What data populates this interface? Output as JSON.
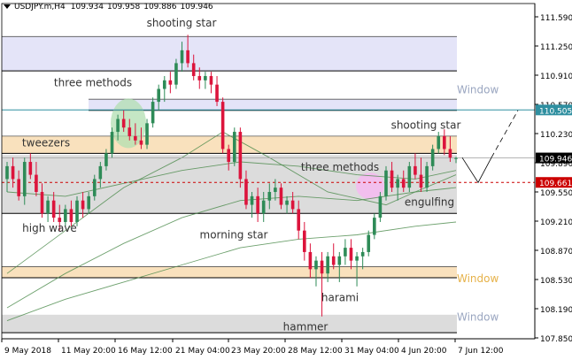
{
  "header": {
    "symbol": "USDJPY.m,H4",
    "open": "109.934",
    "high": "109.958",
    "low": "109.886",
    "close": "109.946"
  },
  "chart_data": {
    "type": "candlestick",
    "ylim": [
      107.85,
      111.75
    ],
    "price_ticks": [
      "111.590",
      "111.250",
      "110.910",
      "110.570",
      "110.230",
      "109.890",
      "109.550",
      "109.210",
      "108.870",
      "108.530",
      "108.190",
      "107.850"
    ],
    "price_tick_values": [
      111.59,
      111.25,
      110.91,
      110.57,
      110.23,
      109.89,
      109.55,
      109.21,
      108.87,
      108.53,
      108.19,
      107.85
    ],
    "time_labels": [
      "9 May 2018",
      "11 May 20:00",
      "16 May 12:00",
      "21 May 04:00",
      "23 May 20:00",
      "28 May 12:00",
      "31 May 04:00",
      "4 Jun 20:00",
      "7 Jun 12:00"
    ],
    "current_price": "109.946",
    "current_price_value": 109.946,
    "level_price": "110.505",
    "level_price_value": 110.505,
    "dashed_level": "109.661",
    "dashed_level_value": 109.661,
    "colors": {
      "bull": "#2e8b57",
      "bear": "#dc143c",
      "window_zone": "#e4e4f8",
      "orange_zone": "#f9e1bd",
      "gray_zone": "#dcdcdc",
      "level_line": "#2f8fa0",
      "dashed_line": "#cc0000",
      "ma": "#4a8a4a",
      "highlight_green": "#b2dfb2",
      "highlight_pink": "#f7b8f2"
    },
    "zones": [
      {
        "type": "window",
        "from": 110.96,
        "to": 111.36
      },
      {
        "type": "window",
        "from": 110.5,
        "to": 110.63
      },
      {
        "type": "orange",
        "from": 110.0,
        "to": 110.2
      },
      {
        "type": "gray",
        "from": 109.3,
        "to": 109.98
      },
      {
        "type": "orange",
        "from": 108.55,
        "to": 108.68
      },
      {
        "type": "gray",
        "from": 107.91,
        "to": 108.12
      }
    ],
    "annotations": [
      "shooting star",
      "three methods",
      "tweezers",
      "high wave",
      "morning star",
      "three methods",
      "shooting star",
      "engulfing",
      "hammer",
      "harami",
      "Window",
      "Window",
      "Window"
    ],
    "candles": [
      [
        109.7,
        109.9,
        109.55,
        109.85
      ],
      [
        109.85,
        109.95,
        109.6,
        109.7
      ],
      [
        109.7,
        109.8,
        109.45,
        109.5
      ],
      [
        109.5,
        109.95,
        109.4,
        109.9
      ],
      [
        109.9,
        110.0,
        109.7,
        109.75
      ],
      [
        109.75,
        109.9,
        109.5,
        109.55
      ],
      [
        109.55,
        109.65,
        109.25,
        109.3
      ],
      [
        109.3,
        109.5,
        109.2,
        109.45
      ],
      [
        109.45,
        109.55,
        109.2,
        109.25
      ],
      [
        109.25,
        109.4,
        109.1,
        109.2
      ],
      [
        109.2,
        109.4,
        109.15,
        109.35
      ],
      [
        109.35,
        109.45,
        109.15,
        109.2
      ],
      [
        109.2,
        109.5,
        109.15,
        109.45
      ],
      [
        109.45,
        109.55,
        109.25,
        109.35
      ],
      [
        109.35,
        109.55,
        109.3,
        109.5
      ],
      [
        109.5,
        109.75,
        109.45,
        109.7
      ],
      [
        109.7,
        109.9,
        109.6,
        109.85
      ],
      [
        109.85,
        110.05,
        109.8,
        110.0
      ],
      [
        110.0,
        110.3,
        109.95,
        110.25
      ],
      [
        110.25,
        110.45,
        110.15,
        110.4
      ],
      [
        110.4,
        110.5,
        110.25,
        110.3
      ],
      [
        110.3,
        110.4,
        110.15,
        110.2
      ],
      [
        110.2,
        110.35,
        110.1,
        110.15
      ],
      [
        110.15,
        110.3,
        110.05,
        110.1
      ],
      [
        110.1,
        110.4,
        110.05,
        110.35
      ],
      [
        110.35,
        110.65,
        110.3,
        110.6
      ],
      [
        110.6,
        110.8,
        110.5,
        110.75
      ],
      [
        110.75,
        110.9,
        110.6,
        110.85
      ],
      [
        110.85,
        110.95,
        110.7,
        110.8
      ],
      [
        110.8,
        111.1,
        110.75,
        111.05
      ],
      [
        111.05,
        111.3,
        110.95,
        111.2
      ],
      [
        111.2,
        111.38,
        111.0,
        111.05
      ],
      [
        111.05,
        111.15,
        110.85,
        110.9
      ],
      [
        110.9,
        111.0,
        110.75,
        110.85
      ],
      [
        110.85,
        110.95,
        110.75,
        110.9
      ],
      [
        110.9,
        110.95,
        110.7,
        110.8
      ],
      [
        110.8,
        110.9,
        110.55,
        110.6
      ],
      [
        110.6,
        110.65,
        110.0,
        110.05
      ],
      [
        110.05,
        110.1,
        109.8,
        109.9
      ],
      [
        109.9,
        110.3,
        109.85,
        110.25
      ],
      [
        110.25,
        110.3,
        109.6,
        109.7
      ],
      [
        109.7,
        109.8,
        109.35,
        109.4
      ],
      [
        109.4,
        109.55,
        109.25,
        109.5
      ],
      [
        109.5,
        109.6,
        109.2,
        109.3
      ],
      [
        109.3,
        109.55,
        109.2,
        109.45
      ],
      [
        109.45,
        109.65,
        109.35,
        109.55
      ],
      [
        109.55,
        109.7,
        109.45,
        109.6
      ],
      [
        109.6,
        109.65,
        109.35,
        109.4
      ],
      [
        109.4,
        109.5,
        109.3,
        109.45
      ],
      [
        109.45,
        109.55,
        109.3,
        109.35
      ],
      [
        109.35,
        109.45,
        109.0,
        109.1
      ],
      [
        109.1,
        109.2,
        108.75,
        108.85
      ],
      [
        108.85,
        108.95,
        108.55,
        108.65
      ],
      [
        108.65,
        108.8,
        108.45,
        108.75
      ],
      [
        108.75,
        108.85,
        108.1,
        108.6
      ],
      [
        108.6,
        108.85,
        108.5,
        108.8
      ],
      [
        108.8,
        108.95,
        108.65,
        108.7
      ],
      [
        108.7,
        108.85,
        108.5,
        108.8
      ],
      [
        108.8,
        109.0,
        108.7,
        108.9
      ],
      [
        108.9,
        109.0,
        108.65,
        108.75
      ],
      [
        108.75,
        108.85,
        108.45,
        108.8
      ],
      [
        108.8,
        108.9,
        108.65,
        108.85
      ],
      [
        108.85,
        109.1,
        108.8,
        109.05
      ],
      [
        109.05,
        109.3,
        109.0,
        109.25
      ],
      [
        109.25,
        109.55,
        109.2,
        109.5
      ],
      [
        109.5,
        109.85,
        109.45,
        109.8
      ],
      [
        109.8,
        109.9,
        109.55,
        109.6
      ],
      [
        109.6,
        109.75,
        109.45,
        109.7
      ],
      [
        109.7,
        109.8,
        109.55,
        109.6
      ],
      [
        109.6,
        109.9,
        109.55,
        109.85
      ],
      [
        109.85,
        110.0,
        109.7,
        109.75
      ],
      [
        109.75,
        109.95,
        109.55,
        109.6
      ],
      [
        109.6,
        109.9,
        109.55,
        109.85
      ],
      [
        109.85,
        110.1,
        109.8,
        110.05
      ],
      [
        110.05,
        110.25,
        110.0,
        110.2
      ],
      [
        110.2,
        110.28,
        109.98,
        110.05
      ],
      [
        110.05,
        110.2,
        109.9,
        109.95
      ],
      [
        109.934,
        109.958,
        109.886,
        109.946
      ]
    ],
    "moving_averages": [
      {
        "points": [
          [
            0,
            108.05
          ],
          [
            10,
            108.3
          ],
          [
            20,
            108.5
          ],
          [
            30,
            108.7
          ],
          [
            40,
            108.9
          ],
          [
            50,
            109.0
          ],
          [
            60,
            109.05
          ],
          [
            70,
            109.15
          ],
          [
            77,
            109.2
          ]
        ]
      },
      {
        "points": [
          [
            0,
            108.2
          ],
          [
            10,
            108.6
          ],
          [
            20,
            108.95
          ],
          [
            30,
            109.25
          ],
          [
            40,
            109.45
          ],
          [
            50,
            109.5
          ],
          [
            60,
            109.45
          ],
          [
            70,
            109.55
          ],
          [
            77,
            109.6
          ]
        ]
      },
      {
        "points": [
          [
            0,
            108.6
          ],
          [
            10,
            109.1
          ],
          [
            20,
            109.6
          ],
          [
            30,
            109.95
          ],
          [
            37,
            110.25
          ],
          [
            45,
            109.95
          ],
          [
            55,
            109.55
          ],
          [
            65,
            109.4
          ],
          [
            70,
            109.55
          ],
          [
            77,
            109.75
          ]
        ]
      },
      {
        "points": [
          [
            0,
            109.55
          ],
          [
            10,
            109.5
          ],
          [
            20,
            109.65
          ],
          [
            30,
            109.8
          ],
          [
            40,
            109.9
          ],
          [
            50,
            109.85
          ],
          [
            60,
            109.75
          ],
          [
            70,
            109.7
          ],
          [
            77,
            109.8
          ]
        ]
      }
    ]
  }
}
